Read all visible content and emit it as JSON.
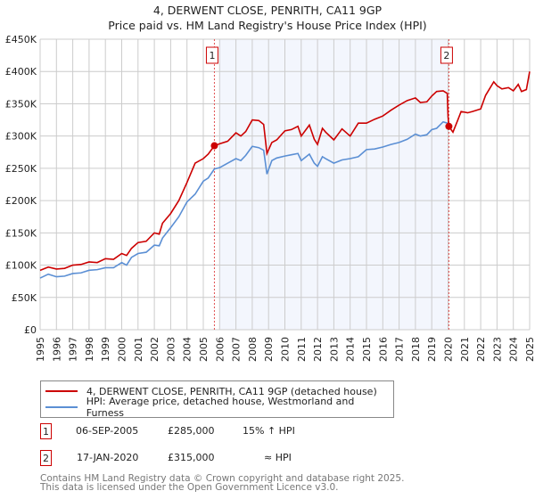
{
  "title": "4, DERWENT CLOSE, PENRITH, CA11 9GP",
  "subtitle": "Price paid vs. HM Land Registry's House Price Index (HPI)",
  "chart_data": {
    "type": "line",
    "xlim": [
      1995,
      2025.1
    ],
    "ylim": [
      0,
      450000
    ],
    "yticks": [
      {
        "v": 0,
        "l": "£0"
      },
      {
        "v": 50000,
        "l": "£50K"
      },
      {
        "v": 100000,
        "l": "£100K"
      },
      {
        "v": 150000,
        "l": "£150K"
      },
      {
        "v": 200000,
        "l": "£200K"
      },
      {
        "v": 250000,
        "l": "£250K"
      },
      {
        "v": 300000,
        "l": "£300K"
      },
      {
        "v": 350000,
        "l": "£350K"
      },
      {
        "v": 400000,
        "l": "£400K"
      },
      {
        "v": 450000,
        "l": "£450K"
      }
    ],
    "xticks": [
      "1995",
      "1996",
      "1997",
      "1998",
      "1999",
      "2000",
      "2001",
      "2002",
      "2003",
      "2004",
      "2005",
      "2006",
      "2007",
      "2008",
      "2009",
      "2010",
      "2011",
      "2012",
      "2013",
      "2014",
      "2015",
      "2016",
      "2017",
      "2018",
      "2019",
      "2020",
      "2021",
      "2022",
      "2023",
      "2024",
      "2025"
    ],
    "grid": true,
    "shaded_range": [
      2006.0,
      2020.05
    ],
    "series": [
      {
        "name": "4, DERWENT CLOSE, PENRITH, CA11 9GP (detached house)",
        "color": "#cc0000",
        "x": [
          1995,
          1995.5,
          1996,
          1996.5,
          1997,
          1997.5,
          1998,
          1998.5,
          1999,
          1999.5,
          2000,
          2000.3,
          2000.6,
          2001,
          2001.5,
          2002,
          2002.3,
          2002.5,
          2003,
          2003.5,
          2004,
          2004.5,
          2005,
          2005.3,
          2005.68,
          2006,
          2006.5,
          2007,
          2007.3,
          2007.6,
          2008,
          2008.4,
          2008.7,
          2008.9,
          2009.2,
          2009.5,
          2010,
          2010.4,
          2010.8,
          2011,
          2011.5,
          2011.8,
          2012,
          2012.3,
          2012.5,
          2013,
          2013.5,
          2014,
          2014.5,
          2015,
          2015.5,
          2016,
          2016.5,
          2017,
          2017.5,
          2018,
          2018.3,
          2018.7,
          2019,
          2019.3,
          2019.7,
          2019.95,
          2020.0,
          2020.05,
          2020.3,
          2020.6,
          2020.8,
          2021.2,
          2021.5,
          2022,
          2022.3,
          2022.8,
          2023,
          2023.3,
          2023.7,
          2024,
          2024.3,
          2024.5,
          2024.8,
          2025
        ],
        "y": [
          92000,
          97000,
          94000,
          95000,
          100000,
          101000,
          105000,
          104000,
          110000,
          109000,
          118000,
          115000,
          126000,
          135000,
          137000,
          150000,
          148000,
          165000,
          180000,
          200000,
          228000,
          258000,
          265000,
          272000,
          285000,
          288000,
          292000,
          305000,
          300000,
          307000,
          325000,
          324000,
          318000,
          273000,
          290000,
          294000,
          308000,
          310000,
          315000,
          300000,
          317000,
          295000,
          287000,
          312000,
          306000,
          294000,
          311000,
          300000,
          320000,
          320000,
          326000,
          331000,
          340000,
          348000,
          355000,
          359000,
          352000,
          353000,
          362000,
          369000,
          370000,
          366000,
          330000,
          315000,
          306000,
          325000,
          338000,
          336000,
          338000,
          342000,
          363000,
          384000,
          378000,
          373000,
          375000,
          370000,
          380000,
          369000,
          372000,
          400000
        ]
      },
      {
        "name": "HPI: Average price, detached house, Westmorland and Furness",
        "color": "#5b8fd4",
        "x": [
          1995,
          1995.5,
          1996,
          1996.5,
          1997,
          1997.5,
          1998,
          1998.5,
          1999,
          1999.5,
          2000,
          2000.3,
          2000.6,
          2001,
          2001.5,
          2002,
          2002.3,
          2002.5,
          2003,
          2003.5,
          2004,
          2004.5,
          2005,
          2005.3,
          2005.68,
          2006,
          2006.5,
          2007,
          2007.3,
          2007.6,
          2008,
          2008.4,
          2008.7,
          2008.9,
          2009.2,
          2009.5,
          2010,
          2010.4,
          2010.8,
          2011,
          2011.5,
          2011.8,
          2012,
          2012.3,
          2012.5,
          2013,
          2013.5,
          2014,
          2014.5,
          2015,
          2015.5,
          2016,
          2016.5,
          2017,
          2017.5,
          2018,
          2018.3,
          2018.7,
          2019,
          2019.3,
          2019.7,
          2019.95,
          2020.05
        ],
        "y": [
          80000,
          86000,
          82000,
          83000,
          87000,
          88000,
          92000,
          93000,
          96000,
          96000,
          104000,
          100000,
          112000,
          118000,
          120000,
          131000,
          130000,
          142000,
          158000,
          175000,
          198000,
          210000,
          230000,
          235000,
          249000,
          251000,
          258000,
          265000,
          262000,
          270000,
          284000,
          282000,
          278000,
          241000,
          262000,
          266000,
          269000,
          271000,
          273000,
          262000,
          272000,
          258000,
          253000,
          268000,
          265000,
          258000,
          263000,
          265000,
          268000,
          279000,
          280000,
          283000,
          287000,
          290000,
          295000,
          303000,
          300000,
          302000,
          310000,
          312000,
          322000,
          320000,
          315000
        ]
      }
    ],
    "sales": [
      {
        "label": "1",
        "x": 2005.68,
        "y": 285000
      },
      {
        "label": "2",
        "x": 2020.05,
        "y": 315000
      }
    ]
  },
  "legend": {
    "items": [
      {
        "label": "4, DERWENT CLOSE, PENRITH, CA11 9GP (detached house)",
        "color": "#cc0000"
      },
      {
        "label": "HPI: Average price, detached house, Westmorland and Furness",
        "color": "#5b8fd4"
      }
    ]
  },
  "sales_table": [
    {
      "num": "1",
      "date": "06-SEP-2005",
      "price": "£285,000",
      "hpi": "15% ↑ HPI"
    },
    {
      "num": "2",
      "date": "17-JAN-2020",
      "price": "£315,000",
      "hpi": "≈ HPI"
    }
  ],
  "footer": {
    "line1": "Contains HM Land Registry data © Crown copyright and database right 2025.",
    "line2": "This data is licensed under the Open Government Licence v3.0."
  }
}
